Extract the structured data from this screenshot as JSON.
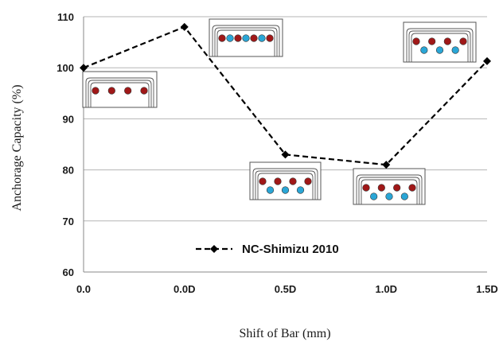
{
  "chart_data": {
    "type": "line",
    "title": "",
    "xlabel": "Shift of Bar (mm)",
    "ylabel": "Anchorage Capacity (%)",
    "categories": [
      "0.0",
      "0.0D",
      "0.5D",
      "1.0D",
      "1.5D"
    ],
    "ylim": [
      60,
      110
    ],
    "yticks": [
      60,
      70,
      80,
      90,
      100,
      110
    ],
    "grid": "horizontal",
    "legend_position": "lower-left",
    "series": [
      {
        "name": "NC-Shimizu 2010",
        "values": [
          100,
          108,
          83,
          81,
          101.3
        ],
        "line_style": "dashed",
        "marker": "diamond",
        "color": "#000000"
      }
    ],
    "annotations": [
      {
        "category_index": 0,
        "description": "bar layout inset",
        "red_bars": 4,
        "blue_bars": 0,
        "layers": 1
      },
      {
        "category_index": 1,
        "description": "bar layout inset",
        "red_bars": 4,
        "blue_bars": 3,
        "layers": 1
      },
      {
        "category_index": 2,
        "description": "bar layout inset",
        "red_bars": 4,
        "blue_bars": 3,
        "layers": 2
      },
      {
        "category_index": 3,
        "description": "bar layout inset",
        "red_bars": 4,
        "blue_bars": 3,
        "layers": 2
      },
      {
        "category_index": 4,
        "description": "bar layout inset",
        "red_bars": 4,
        "blue_bars": 3,
        "layers": 2
      }
    ],
    "colors": {
      "red_bar": "#a01818",
      "blue_bar": "#2aa6d6",
      "grid": "#b5b5b5",
      "axis": "#888888"
    }
  }
}
